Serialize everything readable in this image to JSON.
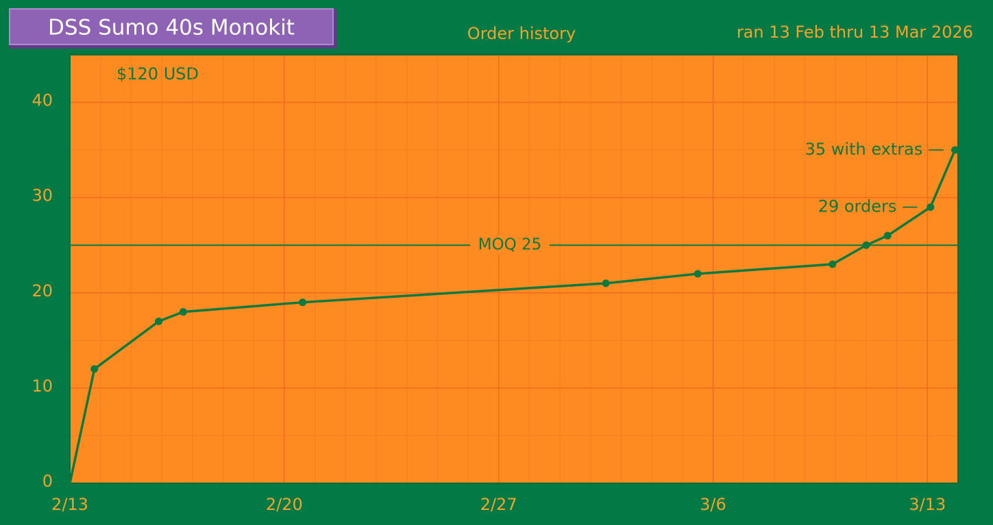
{
  "chart_data": {
    "type": "line",
    "title": "DSS Sumo 40s Monokit",
    "subtitle": "Order history",
    "date_range": "ran 13 Feb thru 13 Mar 2026",
    "price_note": "$120 USD",
    "x": [
      0,
      0.8,
      2.9,
      3.7,
      7.6,
      17.5,
      20.5,
      24.9,
      26.0,
      26.7,
      28.1,
      28.9
    ],
    "series": [
      {
        "color": "#0b7a3e",
        "values": [
          0,
          12,
          17,
          18,
          19,
          21,
          22,
          23,
          25,
          26,
          29,
          35
        ]
      }
    ],
    "xlim": [
      0,
      29
    ],
    "xticks": [
      {
        "value": 0,
        "label": "2/13"
      },
      {
        "value": 7,
        "label": "2/20"
      },
      {
        "value": 14,
        "label": "2/27"
      },
      {
        "value": 21,
        "label": "3/6"
      },
      {
        "value": 28,
        "label": "3/13"
      }
    ],
    "xminor_ticks": [
      1,
      2,
      3,
      4,
      5,
      6,
      8,
      9,
      10,
      11,
      12,
      13,
      15,
      16,
      17,
      18,
      19,
      20,
      22,
      23,
      24,
      25,
      26,
      27
    ],
    "ylim": [
      0,
      45
    ],
    "yticks": [
      0,
      10,
      20,
      30,
      40
    ],
    "yminor_ticks": [
      5,
      15,
      25,
      35
    ],
    "reference_line": {
      "value": 25,
      "label": "MOQ 25"
    },
    "annotations": [
      {
        "text": "35 with extras —",
        "y": 35
      },
      {
        "text": "29 orders —",
        "y": 29
      }
    ],
    "grid": true
  }
}
